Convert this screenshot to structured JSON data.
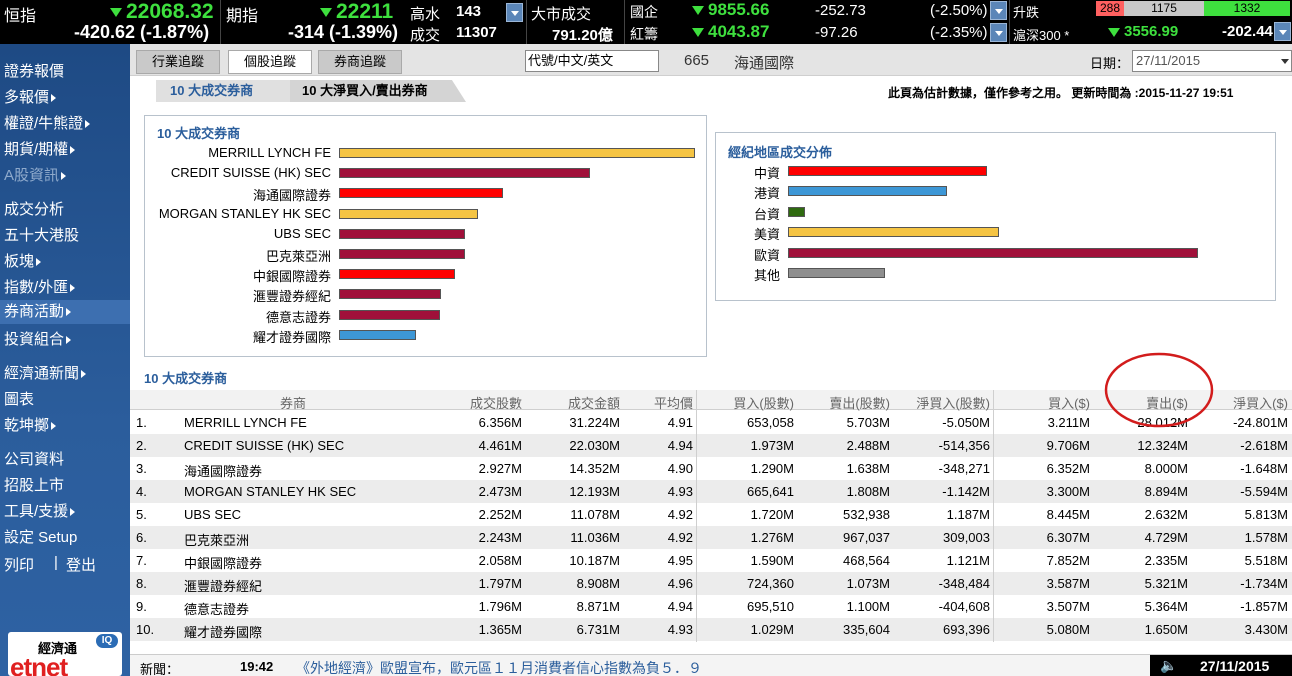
{
  "colors": {
    "red": "#ff0000",
    "maroon": "#a0103a",
    "orange": "#f5c443",
    "blue": "#3d97d6",
    "green": "#2f6a10",
    "gray": "#8f8f8f",
    "link": "#2b5e9c"
  },
  "ticker": {
    "hsi": {
      "label": "恒指",
      "value": "22068.32",
      "change": "-420.62 (-1.87%)"
    },
    "futures": {
      "label": "期指",
      "value": "22211",
      "change": "-314 (-1.39%)",
      "premium_label": "高水",
      "premium": "143",
      "volume_label": "成交",
      "volume": "11307"
    },
    "market": {
      "label": "大市成交",
      "value": "791.20億"
    },
    "hscei": {
      "label": "國企",
      "value": "9855.66",
      "change": "-252.73",
      "pct": "(-2.50%)"
    },
    "redchip": {
      "label": "紅籌",
      "value": "4043.87",
      "change": "-97.26",
      "pct": "(-2.35%)"
    },
    "adv": {
      "label": "升跌",
      "red": "288",
      "mid": "1175",
      "green": "1332"
    },
    "csi": {
      "label": "滬深300 *",
      "value": "3556.99",
      "change": "-202.44"
    }
  },
  "sidebar": {
    "items": [
      {
        "label": "證券報價",
        "arrow": false,
        "dim": false,
        "active": false
      },
      {
        "label": "多報價",
        "arrow": true,
        "dim": false,
        "active": false
      },
      {
        "label": "權證/牛熊證",
        "arrow": true,
        "dim": false,
        "active": false
      },
      {
        "label": "期貨/期權",
        "arrow": true,
        "dim": false,
        "active": false
      },
      {
        "label": "A股資訊",
        "arrow": true,
        "dim": true,
        "active": false
      },
      {
        "label": "成交分析",
        "arrow": false,
        "dim": false,
        "active": false
      },
      {
        "label": "五十大港股",
        "arrow": false,
        "dim": false,
        "active": false
      },
      {
        "label": "板塊",
        "arrow": true,
        "dim": false,
        "active": false
      },
      {
        "label": "指數/外匯",
        "arrow": true,
        "dim": false,
        "active": false
      },
      {
        "label": "券商活動",
        "arrow": true,
        "dim": false,
        "active": true
      },
      {
        "label": "投資組合",
        "arrow": true,
        "dim": false,
        "active": false
      },
      {
        "label": "經濟通新聞",
        "arrow": true,
        "dim": false,
        "active": false
      },
      {
        "label": "圖表",
        "arrow": false,
        "dim": false,
        "active": false
      },
      {
        "label": "乾坤擲",
        "arrow": true,
        "dim": false,
        "active": false
      },
      {
        "label": "公司資料",
        "arrow": false,
        "dim": false,
        "active": false
      },
      {
        "label": "招股上市",
        "arrow": false,
        "dim": false,
        "active": false
      },
      {
        "label": "工具/支援",
        "arrow": true,
        "dim": false,
        "active": false
      },
      {
        "label": "設定 Setup",
        "arrow": false,
        "dim": false,
        "active": false
      }
    ],
    "print": "列印",
    "sep": "|",
    "logout": "登出",
    "logo": {
      "chinese": "經濟通",
      "brand": "etnet",
      "badge": "IQ"
    }
  },
  "tabs": [
    "行業追蹤",
    "個股追蹤",
    "券商追蹤"
  ],
  "stock": {
    "placeholder": "代號/中文/英文",
    "code": "665",
    "name": "海通國際"
  },
  "date": {
    "label": "日期：",
    "value": "27/11/2015"
  },
  "subtabs": [
    "10 大成交券商",
    "10 大淨買入/賣出券商"
  ],
  "notice": "此頁為估計數據，僅作參考之用。 更新時間為 :2015-11-27 19:51",
  "chart_data": [
    {
      "type": "bar",
      "title": "10 大成交券商",
      "categories": [
        "MERRILL LYNCH FE",
        "CREDIT SUISSE (HK) SEC",
        "海通國際證券",
        "MORGAN STANLEY HK SEC",
        "UBS SEC",
        "巴克萊亞洲",
        "中銀國際證券",
        "滙豐證券經紀",
        "德意志證券",
        "耀才證券國際"
      ],
      "values": [
        31.224,
        22.03,
        14.352,
        12.193,
        11.078,
        11.036,
        10.187,
        8.908,
        8.871,
        6.731
      ],
      "colors": [
        "orange",
        "maroon",
        "red",
        "orange",
        "maroon",
        "maroon",
        "red",
        "maroon",
        "maroon",
        "blue"
      ]
    },
    {
      "type": "bar",
      "title": "經紀地區成交分佈",
      "categories": [
        "中資",
        "港資",
        "台資",
        "美資",
        "歐資",
        "其他"
      ],
      "values": [
        42.6,
        34.0,
        3.7,
        45.2,
        87.9,
        20.8
      ],
      "colors": [
        "red",
        "blue",
        "green",
        "orange",
        "maroon",
        "gray"
      ]
    }
  ],
  "table": {
    "title": "10 大成交券商",
    "headers": [
      "券商",
      "成交股數",
      "成交金額",
      "平均價",
      "買入(股數)",
      "賣出(股數)",
      "淨買入(股數)",
      "買入($)",
      "賣出($)",
      "淨買入($)"
    ],
    "rows": [
      [
        "1.",
        "MERRILL LYNCH FE",
        "6.356M",
        "31.224M",
        "4.91",
        "653,058",
        "5.703M",
        "-5.050M",
        "3.211M",
        "28.012M",
        "-24.801M"
      ],
      [
        "2.",
        "CREDIT SUISSE (HK) SEC",
        "4.461M",
        "22.030M",
        "4.94",
        "1.973M",
        "2.488M",
        "-514,356",
        "9.706M",
        "12.324M",
        "-2.618M"
      ],
      [
        "3.",
        "海通國際證券",
        "2.927M",
        "14.352M",
        "4.90",
        "1.290M",
        "1.638M",
        "-348,271",
        "6.352M",
        "8.000M",
        "-1.648M"
      ],
      [
        "4.",
        "MORGAN STANLEY HK SEC",
        "2.473M",
        "12.193M",
        "4.93",
        "665,641",
        "1.808M",
        "-1.142M",
        "3.300M",
        "8.894M",
        "-5.594M"
      ],
      [
        "5.",
        "UBS SEC",
        "2.252M",
        "11.078M",
        "4.92",
        "1.720M",
        "532,938",
        "1.187M",
        "8.445M",
        "2.632M",
        "5.813M"
      ],
      [
        "6.",
        "巴克萊亞洲",
        "2.243M",
        "11.036M",
        "4.92",
        "1.276M",
        "967,037",
        "309,003",
        "6.307M",
        "4.729M",
        "1.578M"
      ],
      [
        "7.",
        "中銀國際證券",
        "2.058M",
        "10.187M",
        "4.95",
        "1.590M",
        "468,564",
        "1.121M",
        "7.852M",
        "2.335M",
        "5.518M"
      ],
      [
        "8.",
        "滙豐證券經紀",
        "1.797M",
        "8.908M",
        "4.96",
        "724,360",
        "1.073M",
        "-348,484",
        "3.587M",
        "5.321M",
        "-1.734M"
      ],
      [
        "9.",
        "德意志證券",
        "1.796M",
        "8.871M",
        "4.94",
        "695,510",
        "1.100M",
        "-404,608",
        "3.507M",
        "5.364M",
        "-1.857M"
      ],
      [
        "10.",
        "耀才證券國際",
        "1.365M",
        "6.731M",
        "4.93",
        "1.029M",
        "335,604",
        "693,396",
        "5.080M",
        "1.650M",
        "3.430M"
      ]
    ]
  },
  "news": {
    "label": "新聞：",
    "time": "19:42",
    "text": "《外地經濟》歐盟宣布，歐元區１１月消費者信心指數為負５．９",
    "date": "27/11/2015"
  }
}
